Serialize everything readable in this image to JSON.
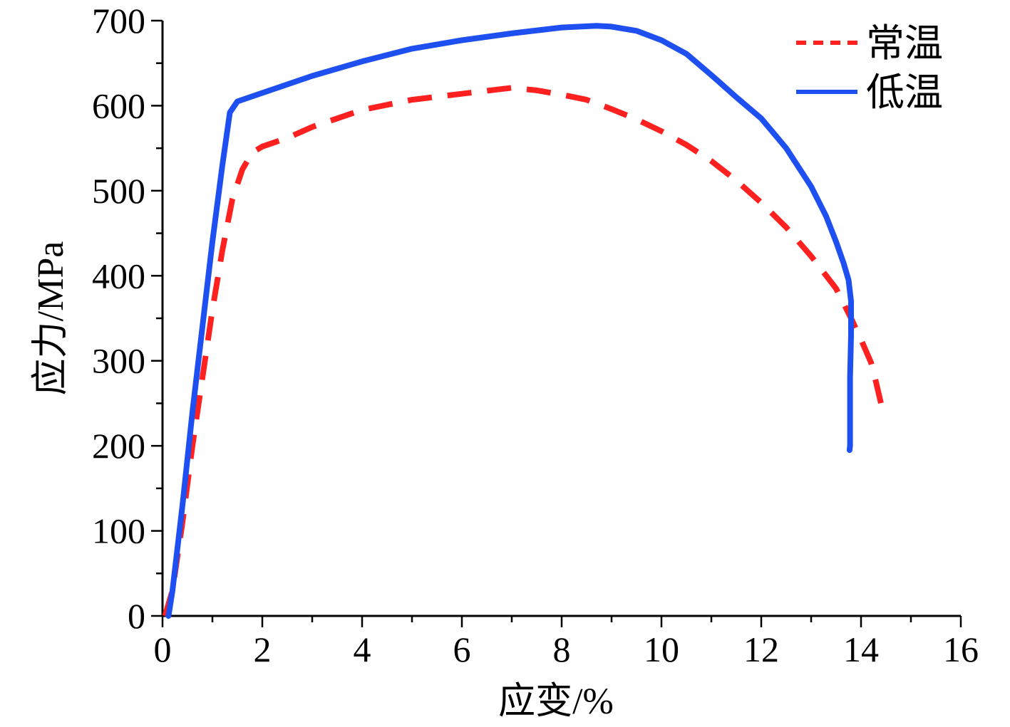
{
  "chart_data": {
    "type": "line",
    "title": "",
    "xlabel": "应变/%",
    "ylabel": "应力/MPa",
    "xlim": [
      0,
      16
    ],
    "ylim": [
      0,
      700
    ],
    "x_ticks": [
      0,
      2,
      4,
      6,
      8,
      10,
      12,
      14,
      16
    ],
    "y_ticks": [
      0,
      100,
      200,
      300,
      400,
      500,
      600,
      700
    ],
    "grid": false,
    "legend_position": "top-right",
    "series": [
      {
        "name": "常温",
        "color": "#ff2020",
        "style": "dashed",
        "points": [
          [
            0.05,
            0
          ],
          [
            0.2,
            30
          ],
          [
            0.4,
            110
          ],
          [
            0.6,
            200
          ],
          [
            0.8,
            280
          ],
          [
            1.0,
            360
          ],
          [
            1.2,
            430
          ],
          [
            1.4,
            490
          ],
          [
            1.6,
            525
          ],
          [
            1.8,
            545
          ],
          [
            2.0,
            552
          ],
          [
            2.5,
            562
          ],
          [
            3.0,
            575
          ],
          [
            4.0,
            595
          ],
          [
            5.0,
            607
          ],
          [
            6.0,
            614
          ],
          [
            7.0,
            621
          ],
          [
            7.5,
            618
          ],
          [
            8.0,
            613
          ],
          [
            8.5,
            607
          ],
          [
            9.0,
            596
          ],
          [
            9.5,
            584
          ],
          [
            10.0,
            570
          ],
          [
            10.5,
            554
          ],
          [
            11.0,
            535
          ],
          [
            11.5,
            512
          ],
          [
            12.0,
            486
          ],
          [
            12.5,
            457
          ],
          [
            13.0,
            423
          ],
          [
            13.5,
            385
          ],
          [
            13.8,
            350
          ],
          [
            14.0,
            325
          ],
          [
            14.2,
            298
          ],
          [
            14.3,
            275
          ],
          [
            14.4,
            250
          ]
        ]
      },
      {
        "name": "低温",
        "color": "#1e4ff0",
        "style": "solid",
        "points": [
          [
            0.12,
            0
          ],
          [
            0.2,
            30
          ],
          [
            0.4,
            130
          ],
          [
            0.6,
            240
          ],
          [
            0.8,
            340
          ],
          [
            1.0,
            440
          ],
          [
            1.2,
            530
          ],
          [
            1.35,
            592
          ],
          [
            1.5,
            605
          ],
          [
            2.0,
            615
          ],
          [
            3.0,
            635
          ],
          [
            4.0,
            652
          ],
          [
            5.0,
            667
          ],
          [
            6.0,
            677
          ],
          [
            7.0,
            685
          ],
          [
            8.0,
            692
          ],
          [
            8.7,
            694
          ],
          [
            9.0,
            693
          ],
          [
            9.5,
            688
          ],
          [
            10.0,
            677
          ],
          [
            10.5,
            661
          ],
          [
            11.0,
            636
          ],
          [
            11.5,
            610
          ],
          [
            12.0,
            585
          ],
          [
            12.5,
            550
          ],
          [
            13.0,
            505
          ],
          [
            13.3,
            470
          ],
          [
            13.5,
            440
          ],
          [
            13.65,
            415
          ],
          [
            13.75,
            395
          ],
          [
            13.8,
            370
          ],
          [
            13.8,
            330
          ],
          [
            13.78,
            280
          ],
          [
            13.78,
            240
          ],
          [
            13.78,
            200
          ],
          [
            13.77,
            195
          ]
        ]
      }
    ]
  }
}
